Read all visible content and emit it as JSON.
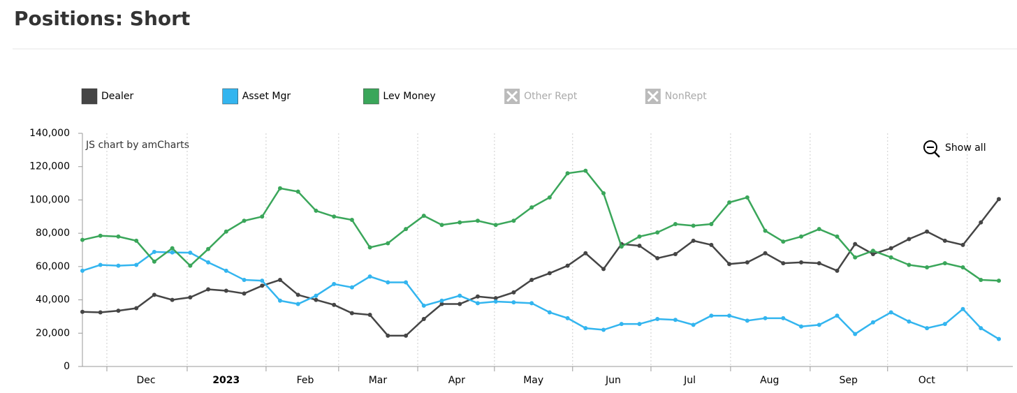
{
  "chart_data": {
    "type": "line",
    "title": "Positions: Short",
    "credit": "JS chart by amCharts",
    "button": "Show all",
    "xlim": [
      0,
      51
    ],
    "xgrid": [
      1.36,
      5.83,
      10.22,
      14.26,
      18.66,
      22.93,
      27.28,
      31.64,
      36.07,
      40.5,
      44.81,
      49.24
    ],
    "xticks": [
      {
        "value": 3.54,
        "label": "Dec"
      },
      {
        "value": 8.0,
        "label": "2023"
      },
      {
        "value": 12.4,
        "label": "Feb"
      },
      {
        "value": 16.44,
        "label": "Mar"
      },
      {
        "value": 20.83,
        "label": "Apr"
      },
      {
        "value": 25.1,
        "label": "May"
      },
      {
        "value": 29.54,
        "label": "Jun"
      },
      {
        "value": 33.8,
        "label": "Jul"
      },
      {
        "value": 38.24,
        "label": "Aug"
      },
      {
        "value": 42.63,
        "label": "Sep"
      },
      {
        "value": 46.99,
        "label": "Oct"
      }
    ],
    "ylim": [
      0,
      140000
    ],
    "yticks": [
      0,
      {
        "value": 20000,
        "label": "20,000"
      },
      {
        "value": 40000,
        "label": "40,000"
      },
      {
        "value": 60000,
        "label": "60,000"
      },
      {
        "value": 80000,
        "label": "80,000"
      },
      {
        "value": 100000,
        "label": "100,000"
      },
      {
        "value": 120000,
        "label": "120,000"
      },
      {
        "value": 140000,
        "label": "140,000"
      }
    ],
    "series": [
      {
        "name": "Dealer",
        "color": "#454545",
        "values": [
          32800,
          32500,
          33500,
          35000,
          43000,
          40000,
          41500,
          46300,
          45500,
          43800,
          48500,
          52000,
          43000,
          40000,
          37000,
          32000,
          31000,
          18500,
          18500,
          28500,
          37500,
          37500,
          42000,
          41000,
          44500,
          52000,
          56000,
          60500,
          68000,
          58500,
          73500,
          72500,
          65000,
          67500,
          75500,
          73000,
          61500,
          62500,
          68000,
          62000,
          62500,
          62000,
          57500,
          73500,
          67500,
          71000,
          76500,
          81000,
          75500,
          73000,
          86500,
          100500
        ]
      },
      {
        "name": "Asset Mgr",
        "color": "#33b5ef",
        "values": [
          57500,
          61000,
          60500,
          61000,
          68800,
          68500,
          68300,
          62500,
          57500,
          52000,
          51500,
          39500,
          37500,
          42500,
          49500,
          47500,
          54000,
          50500,
          50500,
          36500,
          39500,
          42500,
          38000,
          39000,
          38500,
          38000,
          32500,
          29000,
          23000,
          22000,
          25500,
          25500,
          28500,
          28000,
          25000,
          30500,
          30500,
          27500,
          29000,
          29000,
          24000,
          25000,
          30500,
          19500,
          26500,
          32500,
          27000,
          23000,
          25500,
          34500,
          23000,
          16500
        ]
      },
      {
        "name": "Lev Money",
        "color": "#3aa65a",
        "values": [
          76000,
          78500,
          78000,
          75500,
          63000,
          71000,
          60500,
          70500,
          81000,
          87500,
          90000,
          107000,
          105000,
          93500,
          90000,
          88000,
          71500,
          74000,
          82500,
          90500,
          85000,
          86500,
          87500,
          85000,
          87500,
          95500,
          101500,
          116000,
          117500,
          104000,
          72000,
          78000,
          80500,
          85500,
          84500,
          85500,
          98500,
          101500,
          81500,
          75000,
          78000,
          82500,
          78000,
          65500,
          69500,
          65500,
          61000,
          59500,
          62000,
          59500,
          52000,
          51500
        ]
      },
      {
        "name": "Other Rept",
        "visible": false
      },
      {
        "name": "NonRept",
        "visible": false
      }
    ]
  }
}
